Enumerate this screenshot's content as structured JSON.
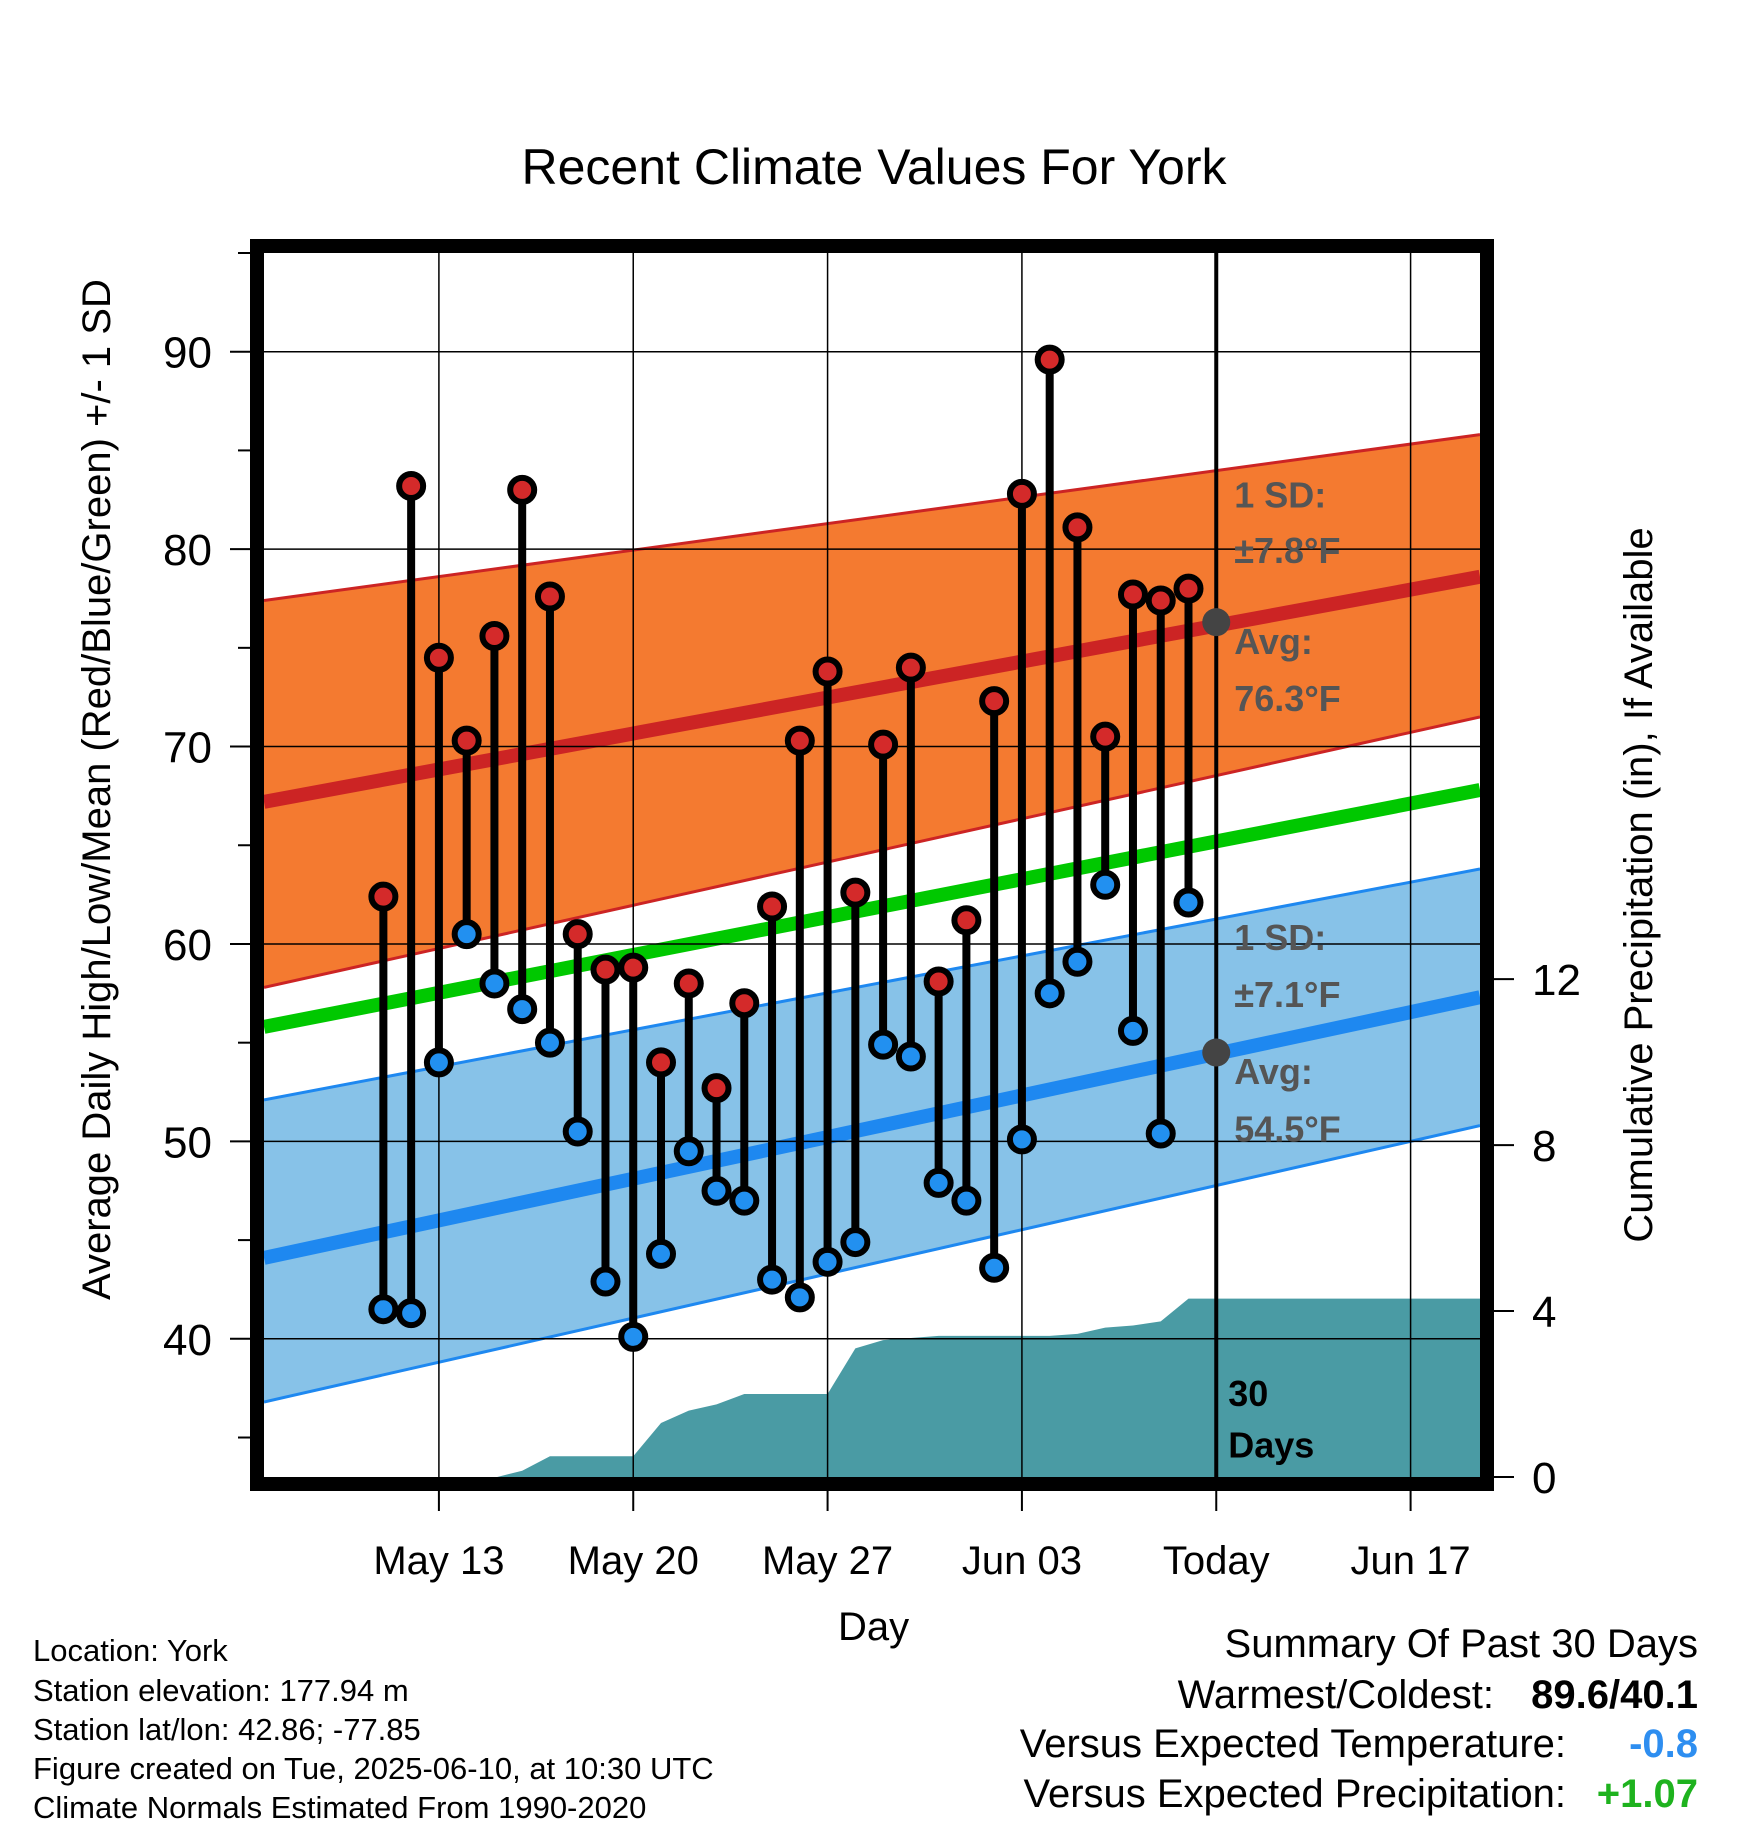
{
  "chart_data": {
    "type": "line",
    "title": "Recent Climate Values For York",
    "xlabel": "Day",
    "ylabel": "Average Daily High/Low/Mean (Red/Blue/Green) +/- 1 SD",
    "ylabel_right": "Cumulative Precipitation (in), If Available",
    "ylim": [
      33,
      95
    ],
    "ylim_right": [
      0,
      29.5
    ],
    "yticks": [
      40,
      50,
      60,
      70,
      80,
      90
    ],
    "yticks_right": [
      0,
      4,
      8,
      12
    ],
    "xlim_days": [
      -34.3,
      9.5
    ],
    "xticks": [
      {
        "day": -28,
        "label": "May 13"
      },
      {
        "day": -21,
        "label": "May 20"
      },
      {
        "day": -14,
        "label": "May 27"
      },
      {
        "day": -7,
        "label": "Jun 03"
      },
      {
        "day": 0,
        "label": "Today"
      },
      {
        "day": 7,
        "label": "Jun 17"
      }
    ],
    "grid": true,
    "normals": {
      "high_avg": {
        "start": 67.2,
        "end": 78.6
      },
      "high_sd_upper": {
        "start": 77.4,
        "end": 85.8
      },
      "high_sd_lower": {
        "start": 57.8,
        "end": 71.5
      },
      "mean_avg": {
        "start": 55.8,
        "end": 67.8
      },
      "low_avg": {
        "start": 44.1,
        "end": 57.3
      },
      "low_sd_upper": {
        "start": 52.1,
        "end": 63.8
      },
      "low_sd_lower": {
        "start": 36.8,
        "end": 50.8
      }
    },
    "days": [
      -30,
      -29,
      -28,
      -27,
      -26,
      -25,
      -24,
      -23,
      -22,
      -21,
      -20,
      -19,
      -18,
      -17,
      -16,
      -15,
      -14,
      -13,
      -12,
      -11,
      -10,
      -9,
      -8,
      -7,
      -6,
      -5,
      -4,
      -3,
      -2,
      -1
    ],
    "highs": [
      62.4,
      83.2,
      74.5,
      70.3,
      75.6,
      83.0,
      77.6,
      60.5,
      58.7,
      58.8,
      54.0,
      58.0,
      52.7,
      57.0,
      61.9,
      70.3,
      73.8,
      62.6,
      70.1,
      74.0,
      58.1,
      61.2,
      72.3,
      82.8,
      89.6,
      81.1,
      70.5,
      77.7,
      77.4,
      78.0
    ],
    "lows": [
      41.5,
      41.3,
      54.0,
      60.5,
      58.0,
      56.7,
      55.0,
      50.5,
      42.9,
      40.1,
      44.3,
      49.5,
      47.5,
      47.0,
      43.0,
      42.1,
      43.9,
      44.9,
      54.9,
      54.3,
      47.9,
      47.0,
      43.6,
      50.1,
      57.5,
      59.1,
      63.0,
      55.6,
      50.4,
      62.1
    ],
    "precip_days": [
      -34.3,
      -25.9,
      -25,
      -24,
      -23,
      -22,
      -21,
      -20,
      -19,
      -18,
      -17,
      -16,
      -15,
      -14,
      -13,
      -12,
      -11,
      -10,
      -9,
      -8,
      -7,
      -6,
      -5,
      -4,
      -3,
      -2,
      -1,
      9.5
    ],
    "precip_cumulative": [
      0,
      0,
      0.15,
      0.5,
      0.5,
      0.5,
      0.5,
      1.3,
      1.6,
      1.75,
      2.0,
      2.0,
      2.0,
      2.0,
      3.1,
      3.3,
      3.35,
      3.4,
      3.4,
      3.4,
      3.4,
      3.4,
      3.45,
      3.6,
      3.65,
      3.75,
      4.3,
      4.3
    ],
    "annotations": {
      "high_sd": "1 SD:",
      "high_sd_value": "±7.8°F",
      "high_avg_label": "Avg:",
      "high_avg_value": "76.3°F",
      "low_sd": "1 SD:",
      "low_sd_value": "±7.1°F",
      "low_avg_label": "Avg:",
      "low_avg_value": "54.5°F",
      "days_count": "30",
      "days_word": "Days"
    },
    "today_marker": {
      "high": 76.3,
      "low": 54.5
    }
  },
  "colors": {
    "high_band": "#F47A30",
    "high_line": "#CC2424",
    "low_band": "#87C2E8",
    "low_line": "#1E88F0",
    "mean_line": "#00C800",
    "precip": "#4A9BA4",
    "high_dot": "#D42A2A",
    "low_dot": "#2290F0",
    "annotation": "#555555",
    "temp_anomaly": "#2E8EF0",
    "precip_anomaly": "#1EB21E"
  },
  "footer": {
    "location": "Location: York",
    "elevation": "Station elevation: 177.94 m",
    "latlon": "Station lat/lon: 42.86; -77.85",
    "created": "Figure created on Tue, 2025-06-10, at 10:30 UTC",
    "normals": "Climate Normals Estimated From 1990-2020"
  },
  "summary": {
    "heading": "Summary Of Past 30 Days",
    "warm_cold_label": "Warmest/Coldest:",
    "warm_cold_value": "89.6/40.1",
    "temp_label": "Versus Expected Temperature:",
    "temp_value": "-0.8",
    "precip_label": "Versus Expected Precipitation:",
    "precip_value": "+1.07"
  }
}
